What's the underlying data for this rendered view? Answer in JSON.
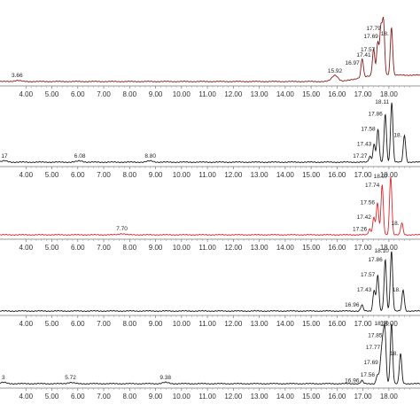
{
  "chart_data": [
    {
      "type": "line",
      "color": "#8b1a1a",
      "x_ticks": [
        "4.00",
        "5.00",
        "6.00",
        "7.00",
        "8.00",
        "9.00",
        "10.00",
        "11.00",
        "12.00",
        "13.00",
        "14.00",
        "15.00",
        "16.00",
        "17.00",
        "18.00"
      ],
      "xlim": [
        3.0,
        19.2
      ],
      "peaks": [
        {
          "x": 3.66,
          "label": "3.66",
          "h": 0.02
        },
        {
          "x": 15.92,
          "label": "15.92",
          "h": 0.12
        },
        {
          "x": 16.97,
          "label": "16.97",
          "h": 0.35
        },
        {
          "x": 17.41,
          "label": "17.41",
          "h": 0.5
        },
        {
          "x": 17.57,
          "label": "17.57",
          "h": 0.6
        },
        {
          "x": 17.69,
          "label": "17.69",
          "h": 0.85
        },
        {
          "x": 17.79,
          "label": "17.79",
          "h": 1.0
        },
        {
          "x": 18.1,
          "label": "18.",
          "h": 0.9
        }
      ]
    },
    {
      "type": "line",
      "color": "#1a1a1a",
      "x_ticks": [
        "4.00",
        "5.00",
        "6.00",
        "7.00",
        "8.00",
        "9.00",
        "10.00",
        "11.00",
        "12.00",
        "13.00",
        "14.00",
        "15.00",
        "16.00",
        "17.00",
        "18.00"
      ],
      "xlim": [
        3.0,
        19.2
      ],
      "peaks": [
        {
          "x": 3.17,
          "label": "17",
          "h": 0.02
        },
        {
          "x": 6.08,
          "label": "6.08",
          "h": 0.02
        },
        {
          "x": 8.8,
          "label": "8.80",
          "h": 0.02
        },
        {
          "x": 17.27,
          "label": "17.27",
          "h": 0.1
        },
        {
          "x": 17.43,
          "label": "17.43",
          "h": 0.3
        },
        {
          "x": 17.58,
          "label": "17.58",
          "h": 0.55
        },
        {
          "x": 17.86,
          "label": "17.86",
          "h": 0.8
        },
        {
          "x": 18.11,
          "label": "18.11",
          "h": 1.0
        },
        {
          "x": 18.6,
          "label": "18.",
          "h": 0.45
        }
      ]
    },
    {
      "type": "line",
      "color": "#e0262b",
      "x_ticks": [
        "4.00",
        "5.00",
        "6.00",
        "7.00",
        "8.00",
        "9.00",
        "10.00",
        "11.00",
        "12.00",
        "13.00",
        "14.00",
        "15.00",
        "16.00",
        "17.00",
        "18.00"
      ],
      "xlim": [
        3.0,
        19.2
      ],
      "peaks": [
        {
          "x": 7.7,
          "label": "7.70",
          "h": 0.02
        },
        {
          "x": 17.26,
          "label": "17.26",
          "h": 0.1
        },
        {
          "x": 17.42,
          "label": "17.42",
          "h": 0.3
        },
        {
          "x": 17.56,
          "label": "17.56",
          "h": 0.55
        },
        {
          "x": 17.74,
          "label": "17.74",
          "h": 0.85
        },
        {
          "x": 18.07,
          "label": "18.07",
          "h": 1.0
        },
        {
          "x": 18.5,
          "label": "18.",
          "h": 0.2
        }
      ]
    },
    {
      "type": "line",
      "color": "#1a1a1a",
      "x_ticks": [
        "4.00",
        "5.00",
        "6.00",
        "7.00",
        "8.00",
        "9.00",
        "10.00",
        "11.00",
        "12.00",
        "13.00",
        "14.00",
        "15.00",
        "16.00",
        "17.00",
        "18.00"
      ],
      "xlim": [
        3.0,
        19.2
      ],
      "peaks": [
        {
          "x": 16.96,
          "label": "16.96",
          "h": 0.1
        },
        {
          "x": 17.43,
          "label": "17.43",
          "h": 0.35
        },
        {
          "x": 17.57,
          "label": "17.57",
          "h": 0.6
        },
        {
          "x": 17.86,
          "label": "17.86",
          "h": 0.85
        },
        {
          "x": 18.1,
          "label": "18.10",
          "h": 1.0
        },
        {
          "x": 18.55,
          "label": "18.",
          "h": 0.35
        }
      ]
    },
    {
      "type": "line",
      "color": "#1a1a1a",
      "x_ticks": [
        "4.00",
        "5.00",
        "6.00",
        "7.00",
        "8.00",
        "9.00",
        "10.00",
        "11.00",
        "12.00",
        "13.00",
        "14.00",
        "15.00",
        "16.00",
        "17.00",
        "18.00"
      ],
      "xlim": [
        3.0,
        19.2
      ],
      "peaks": [
        {
          "x": 3.13,
          "label": "3",
          "h": 0.02
        },
        {
          "x": 5.72,
          "label": "5.72",
          "h": 0.02
        },
        {
          "x": 9.38,
          "label": "9.38",
          "h": 0.02
        },
        {
          "x": 16.96,
          "label": "16.96",
          "h": 0.05
        },
        {
          "x": 17.56,
          "label": "17.56",
          "h": 0.15
        },
        {
          "x": 17.69,
          "label": "17.69",
          "h": 0.35
        },
        {
          "x": 17.77,
          "label": "17.77",
          "h": 0.6
        },
        {
          "x": 17.85,
          "label": "17.85",
          "h": 0.8
        },
        {
          "x": 18.1,
          "label": "18.10",
          "h": 1.0
        },
        {
          "x": 18.45,
          "label": "18.",
          "h": 0.5
        }
      ]
    }
  ]
}
